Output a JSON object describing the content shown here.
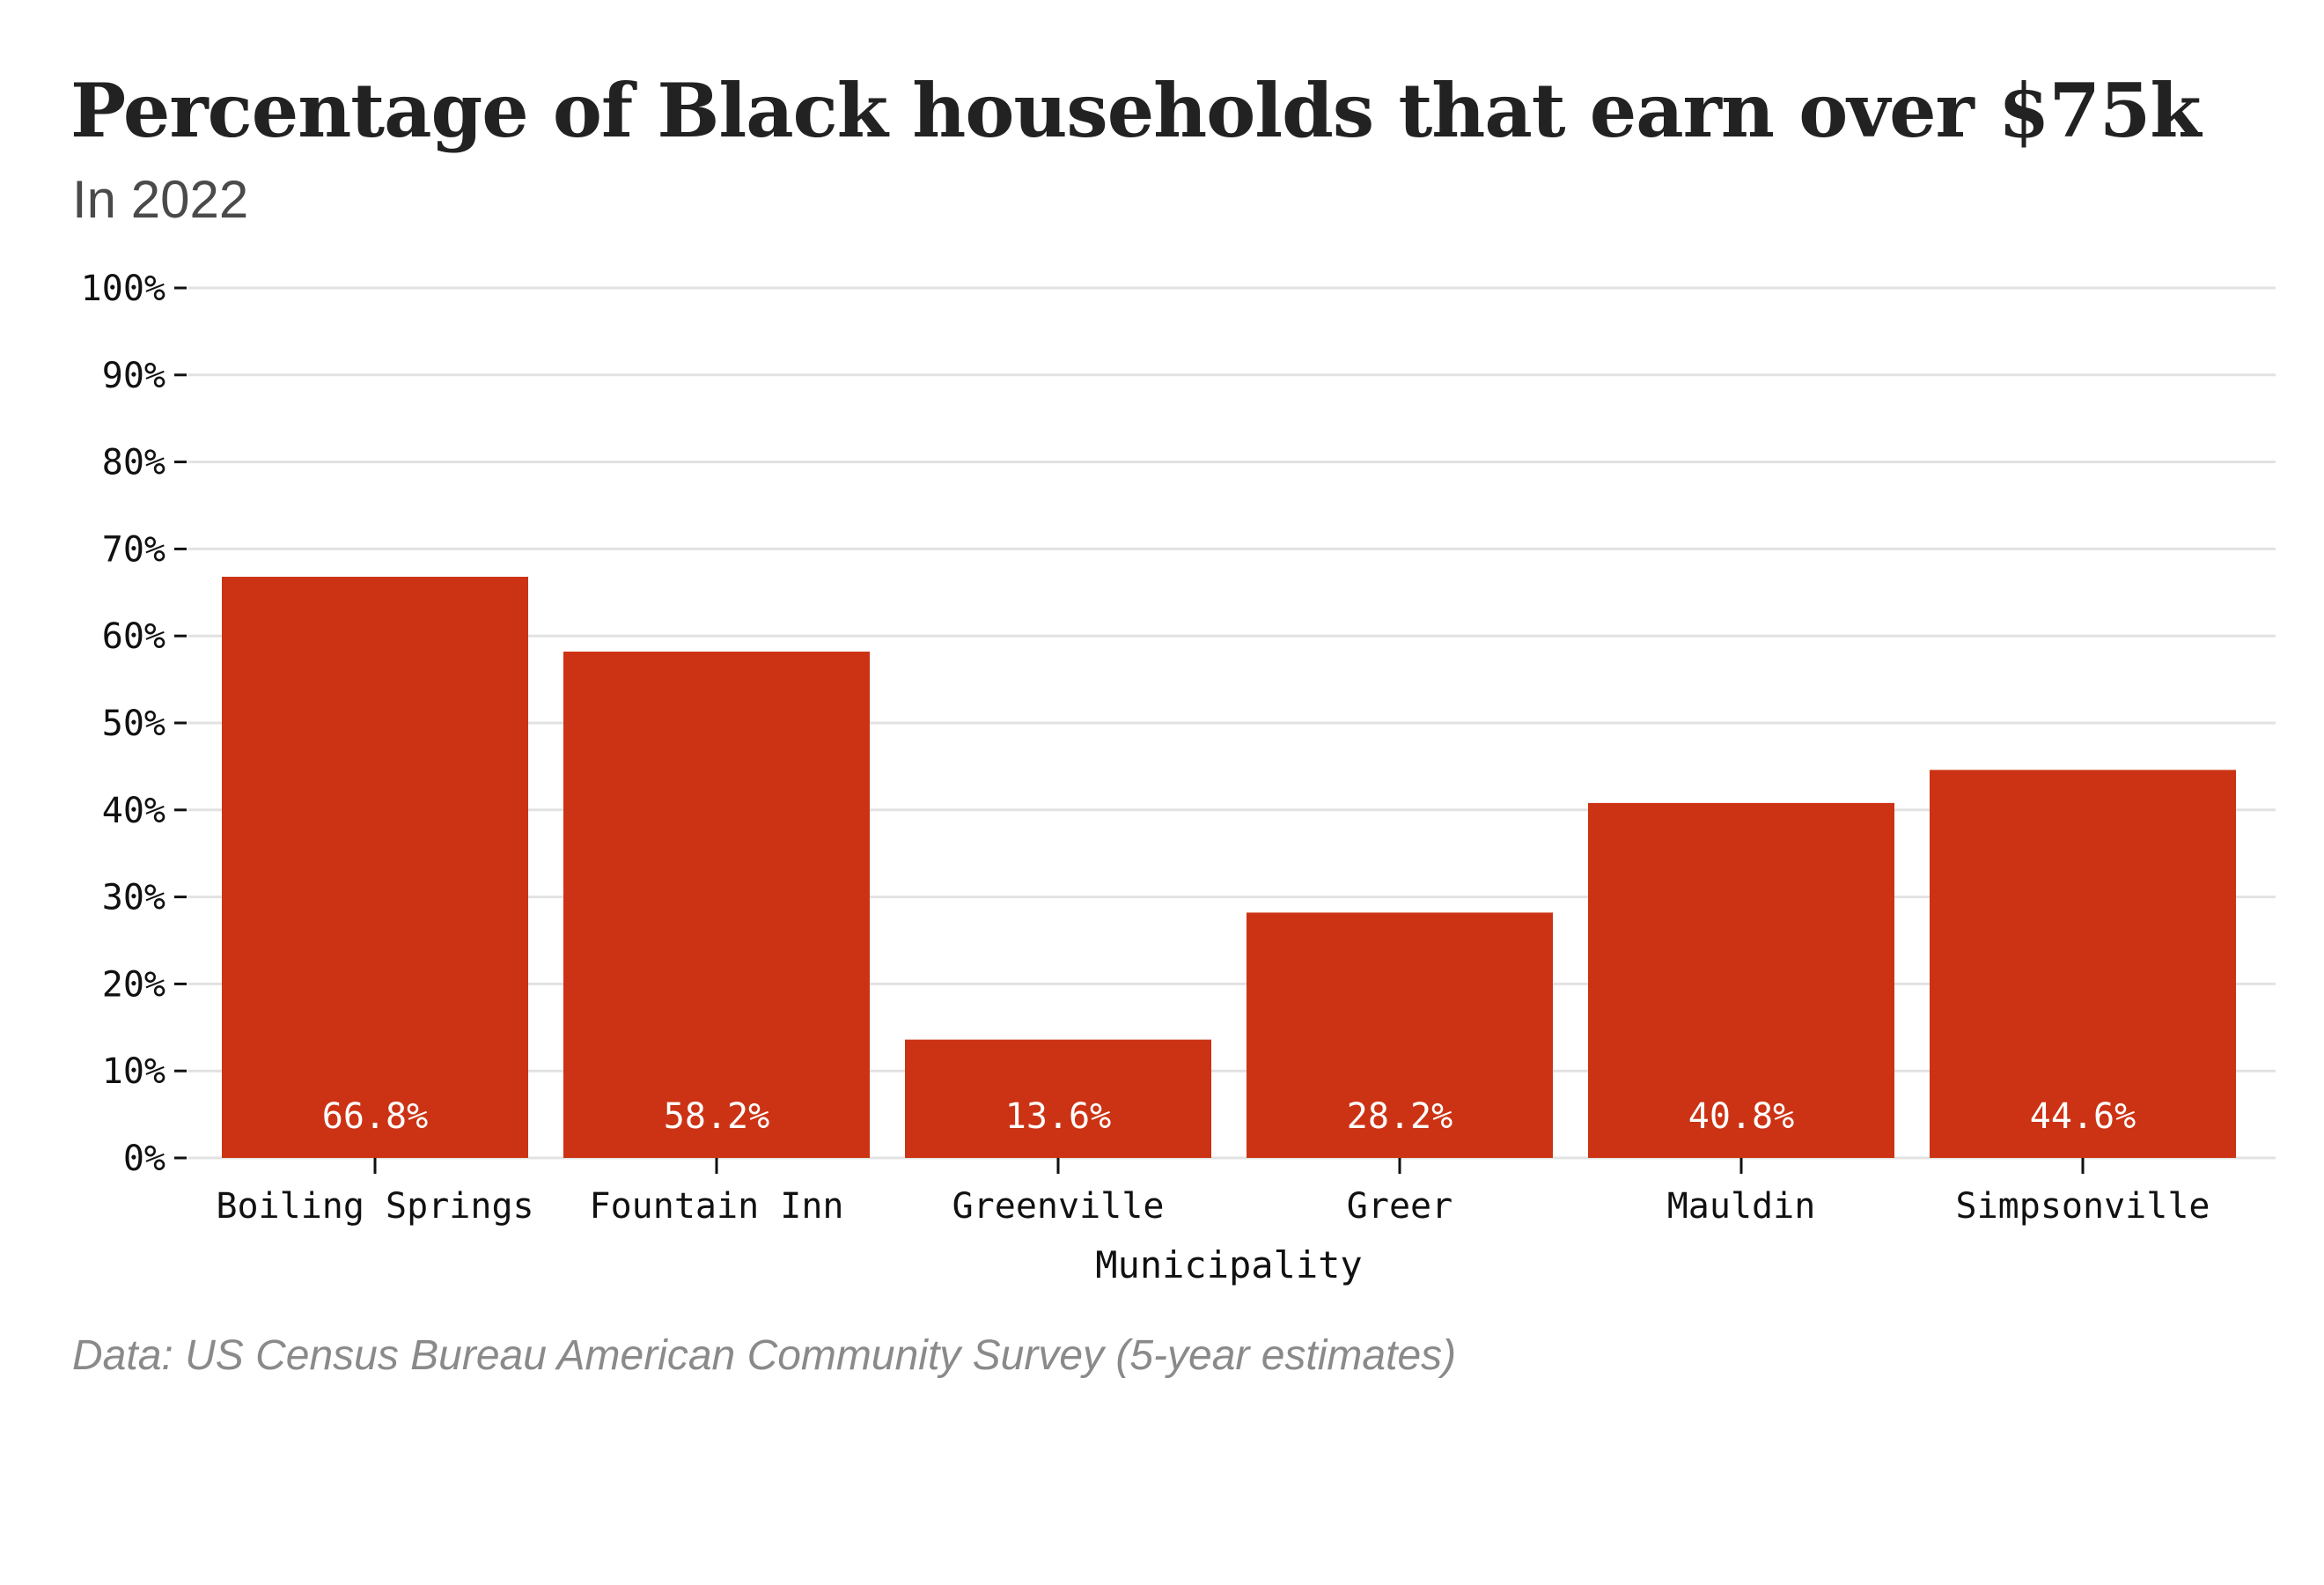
{
  "chart_data": {
    "type": "bar",
    "title": "Percentage of Black households that earn over $75k",
    "subtitle": "In 2022",
    "xlabel": "Municipality",
    "ylabel": "",
    "categories": [
      "Boiling Springs",
      "Fountain Inn",
      "Greenville",
      "Greer",
      "Mauldin",
      "Simpsonville"
    ],
    "values": [
      66.8,
      58.2,
      13.6,
      28.2,
      40.8,
      44.6
    ],
    "value_labels": [
      "66.8%",
      "58.2%",
      "13.6%",
      "28.2%",
      "40.8%",
      "44.6%"
    ],
    "ylim": [
      0,
      100
    ],
    "yticks": [
      0,
      10,
      20,
      30,
      40,
      50,
      60,
      70,
      80,
      90,
      100
    ],
    "ytick_labels": [
      "0%",
      "10%",
      "20%",
      "30%",
      "40%",
      "50%",
      "60%",
      "70%",
      "80%",
      "90%",
      "100%"
    ],
    "grid": true,
    "legend": "none",
    "bar_color": "#cc3314",
    "source": "Data: US Census Bureau American Community Survey (5-year estimates)"
  }
}
